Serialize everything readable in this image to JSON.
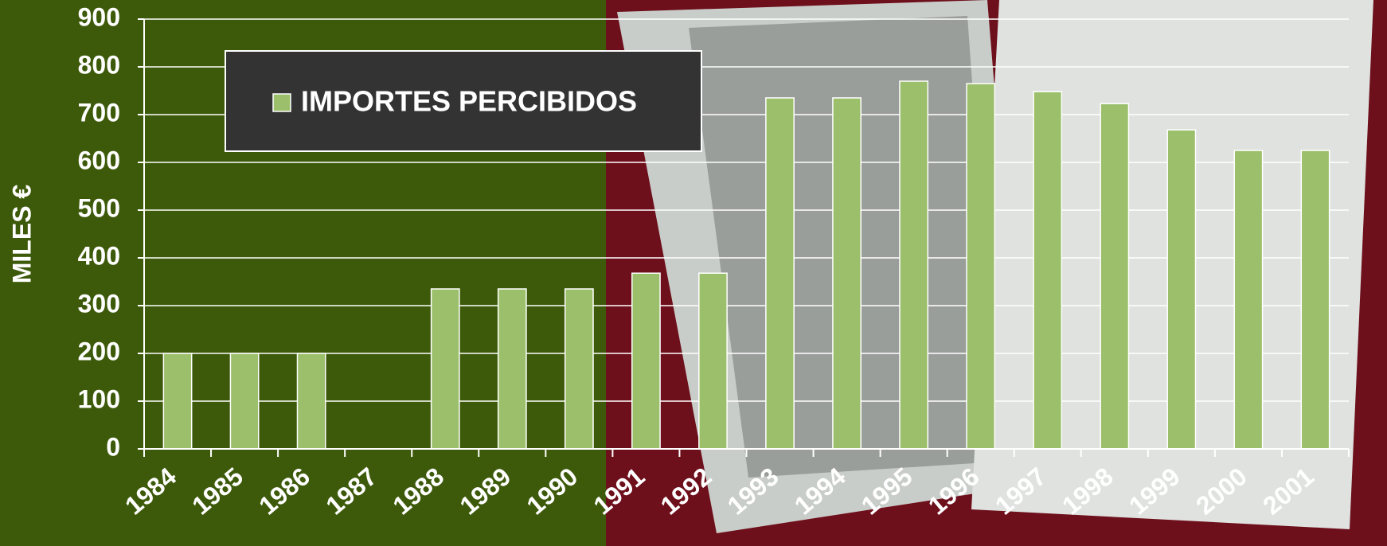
{
  "chart_data": {
    "type": "bar",
    "y_label": "MILES €",
    "categories": [
      "1984",
      "1985",
      "1986",
      "1987",
      "1988",
      "1989",
      "1990",
      "1991",
      "1992",
      "1993",
      "1994",
      "1995",
      "1996",
      "1997",
      "1998",
      "1999",
      "2000",
      "2001"
    ],
    "series": [
      {
        "name": "IMPORTES PERCIBIDOS",
        "color": "#9bbf6a",
        "values": [
          200,
          200,
          200,
          null,
          335,
          335,
          335,
          368,
          368,
          735,
          735,
          770,
          765,
          748,
          723,
          668,
          625,
          625
        ]
      }
    ],
    "ylim": [
      0,
      900
    ],
    "yticks": [
      0,
      100,
      200,
      300,
      400,
      500,
      600,
      700,
      800,
      900
    ],
    "grid": true,
    "legend": "top-left"
  }
}
